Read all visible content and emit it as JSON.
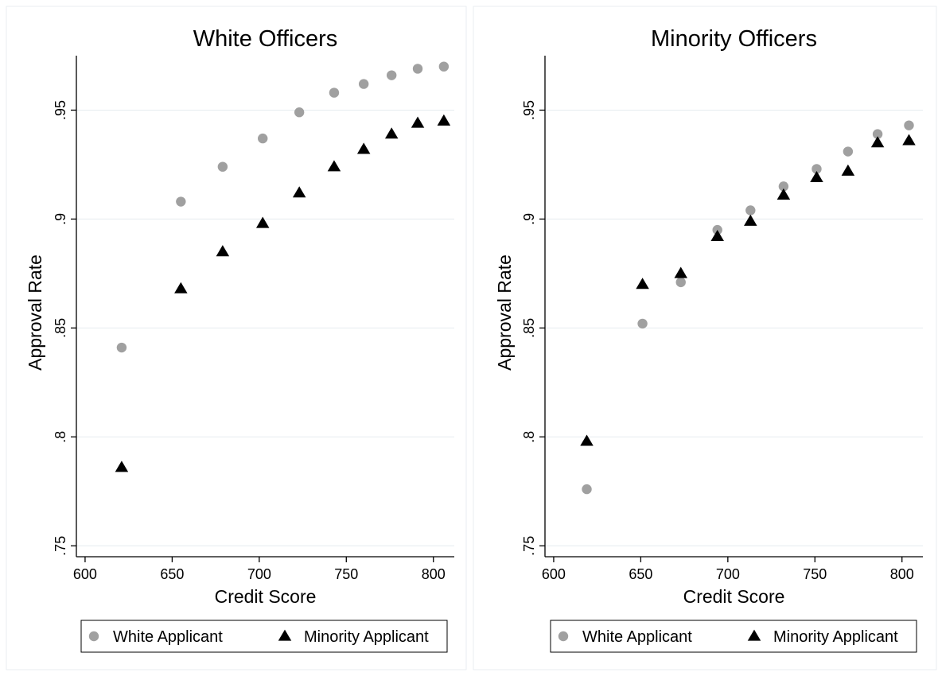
{
  "chart_data": [
    {
      "type": "scatter",
      "title": "White Officers",
      "xlabel": "Credit Score",
      "ylabel": "Approval Rate",
      "xlim": [
        595,
        812
      ],
      "ylim": [
        0.745,
        0.975
      ],
      "xticks": [
        600,
        650,
        700,
        750,
        800
      ],
      "xtick_labels": [
        "600",
        "650",
        "700",
        "750",
        "800"
      ],
      "yticks": [
        0.75,
        0.8,
        0.85,
        0.9,
        0.95
      ],
      "ytick_labels": [
        ".75",
        ".8",
        ".85",
        ".9",
        ".95"
      ],
      "grid": true,
      "legend_position": "bottom",
      "series": [
        {
          "name": "White Applicant",
          "marker": "circle",
          "color": "#a0a0a0",
          "points": [
            {
              "x": 621,
              "y": 0.841
            },
            {
              "x": 655,
              "y": 0.908
            },
            {
              "x": 679,
              "y": 0.924
            },
            {
              "x": 702,
              "y": 0.937
            },
            {
              "x": 723,
              "y": 0.949
            },
            {
              "x": 743,
              "y": 0.958
            },
            {
              "x": 760,
              "y": 0.962
            },
            {
              "x": 776,
              "y": 0.966
            },
            {
              "x": 791,
              "y": 0.969
            },
            {
              "x": 806,
              "y": 0.97
            }
          ]
        },
        {
          "name": "Minority Applicant",
          "marker": "triangle",
          "color": "#000000",
          "points": [
            {
              "x": 621,
              "y": 0.786
            },
            {
              "x": 655,
              "y": 0.868
            },
            {
              "x": 679,
              "y": 0.885
            },
            {
              "x": 702,
              "y": 0.898
            },
            {
              "x": 723,
              "y": 0.912
            },
            {
              "x": 743,
              "y": 0.924
            },
            {
              "x": 760,
              "y": 0.932
            },
            {
              "x": 776,
              "y": 0.939
            },
            {
              "x": 791,
              "y": 0.944
            },
            {
              "x": 806,
              "y": 0.945
            }
          ]
        }
      ]
    },
    {
      "type": "scatter",
      "title": "Minority Officers",
      "xlabel": "Credit Score",
      "ylabel": "Approval Rate",
      "xlim": [
        595,
        812
      ],
      "ylim": [
        0.745,
        0.975
      ],
      "xticks": [
        600,
        650,
        700,
        750,
        800
      ],
      "xtick_labels": [
        "600",
        "650",
        "700",
        "750",
        "800"
      ],
      "yticks": [
        0.75,
        0.8,
        0.85,
        0.9,
        0.95
      ],
      "ytick_labels": [
        ".75",
        ".8",
        ".85",
        ".9",
        ".95"
      ],
      "grid": true,
      "legend_position": "bottom",
      "series": [
        {
          "name": "White Applicant",
          "marker": "circle",
          "color": "#a0a0a0",
          "points": [
            {
              "x": 619,
              "y": 0.776
            },
            {
              "x": 651,
              "y": 0.852
            },
            {
              "x": 673,
              "y": 0.871
            },
            {
              "x": 694,
              "y": 0.895
            },
            {
              "x": 713,
              "y": 0.904
            },
            {
              "x": 732,
              "y": 0.915
            },
            {
              "x": 751,
              "y": 0.923
            },
            {
              "x": 769,
              "y": 0.931
            },
            {
              "x": 786,
              "y": 0.939
            },
            {
              "x": 804,
              "y": 0.943
            }
          ]
        },
        {
          "name": "Minority Applicant",
          "marker": "triangle",
          "color": "#000000",
          "points": [
            {
              "x": 619,
              "y": 0.798
            },
            {
              "x": 651,
              "y": 0.87
            },
            {
              "x": 673,
              "y": 0.875
            },
            {
              "x": 694,
              "y": 0.892
            },
            {
              "x": 713,
              "y": 0.899
            },
            {
              "x": 732,
              "y": 0.911
            },
            {
              "x": 751,
              "y": 0.919
            },
            {
              "x": 769,
              "y": 0.922
            },
            {
              "x": 786,
              "y": 0.935
            },
            {
              "x": 804,
              "y": 0.936
            }
          ]
        }
      ]
    }
  ]
}
